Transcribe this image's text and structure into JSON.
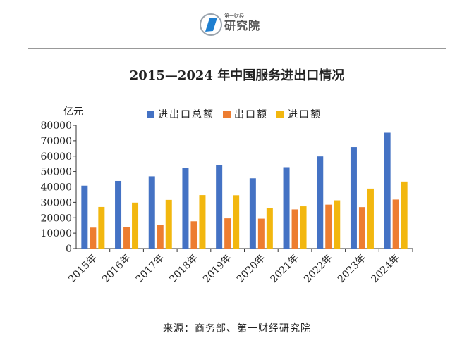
{
  "logo": {
    "top_text": "第一财经",
    "main_text": "研究院"
  },
  "chart_data": {
    "type": "bar",
    "title": "2015—2024 年中国服务进出口情况",
    "ylabel": "亿元",
    "xlabel": "",
    "ylim": [
      0,
      80000
    ],
    "yticks": [
      0,
      10000,
      20000,
      30000,
      40000,
      50000,
      60000,
      70000,
      80000
    ],
    "grid": false,
    "legend": "top",
    "categories": [
      "2015年",
      "2016年",
      "2017年",
      "2018年",
      "2019年",
      "2020年",
      "2021年",
      "2022年",
      "2023年",
      "2024年"
    ],
    "series": [
      {
        "name": "进出口总额",
        "color": "#4472C4",
        "values": [
          40800,
          43900,
          46900,
          52400,
          54200,
          45600,
          52800,
          59800,
          65800,
          75200
        ]
      },
      {
        "name": "出口额",
        "color": "#ED7D31",
        "values": [
          13600,
          14000,
          15400,
          17700,
          19600,
          19400,
          25400,
          28500,
          26900,
          31800
        ]
      },
      {
        "name": "进口额",
        "color": "#F2B70F",
        "values": [
          27000,
          29800,
          31600,
          34700,
          34600,
          26300,
          27400,
          31300,
          38900,
          43500
        ]
      }
    ]
  },
  "source": "来源：商务部、第一财经研究院"
}
